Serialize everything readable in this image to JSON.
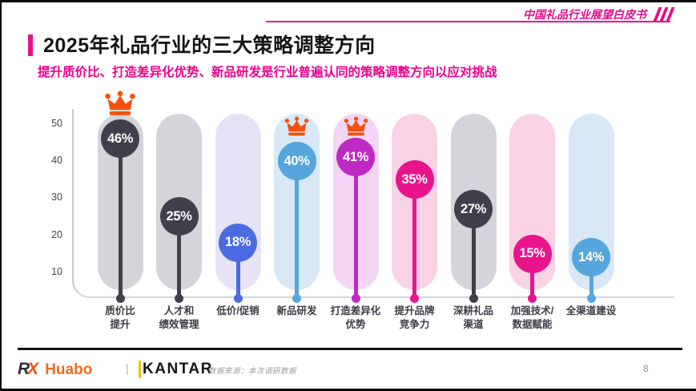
{
  "header": {
    "watermark": "中国礼品行业展望白皮书",
    "title": "2025年礼品行业的三大策略调整方向",
    "subtitle": "提升质价比、打造差异化优势、新品研发是行业普遍认同的策略调整方向以应对挑战"
  },
  "chart_data": {
    "type": "bar",
    "style": "lollipop-capsule",
    "title": "2025年礼品行业的三大策略调整方向",
    "unit": "%",
    "ylim": [
      0,
      50
    ],
    "yticks": [
      10,
      20,
      30,
      40,
      50
    ],
    "grid": false,
    "legend": "none",
    "categories": [
      "质价比提升",
      "人才和绩效管理",
      "低价/促销",
      "新品研发",
      "打造差异化优势",
      "提升品牌竞争力",
      "深耕礼品渠道",
      "加强技术/数据赋能",
      "全渠道建设"
    ],
    "values": [
      46,
      25,
      18,
      40,
      41,
      35,
      27,
      15,
      14
    ],
    "crowned_top3": [
      "质价比提升",
      "打造差异化优势",
      "新品研发"
    ],
    "columns": [
      {
        "label_lines": [
          "质价比",
          "提升"
        ],
        "value": 46,
        "value_label": "46%",
        "accent": "#40404c",
        "capsule": "#d5d4da",
        "crown": "above"
      },
      {
        "label_lines": [
          "人才和",
          "绩效管理"
        ],
        "value": 25,
        "value_label": "25%",
        "accent": "#40404c",
        "capsule": "#d5d4da",
        "crown": null
      },
      {
        "label_lines": [
          "低价/促销"
        ],
        "value": 18,
        "value_label": "18%",
        "accent": "#4a6ce0",
        "capsule": "#e7e2f6",
        "crown": null
      },
      {
        "label_lines": [
          "新品研发"
        ],
        "value": 40,
        "value_label": "40%",
        "accent": "#56a5dc",
        "capsule": "#d8e8f6",
        "crown": "top"
      },
      {
        "label_lines": [
          "打造差异化",
          "优势"
        ],
        "value": 41,
        "value_label": "41%",
        "accent": "#bd2ac4",
        "capsule": "#f3d6f5",
        "crown": "top"
      },
      {
        "label_lines": [
          "提升品牌",
          "竞争力"
        ],
        "value": 35,
        "value_label": "35%",
        "accent": "#e9148c",
        "capsule": "#f9d3e5",
        "crown": null
      },
      {
        "label_lines": [
          "深耕礼品",
          "渠道"
        ],
        "value": 27,
        "value_label": "27%",
        "accent": "#40404c",
        "capsule": "#d5d4da",
        "crown": null
      },
      {
        "label_lines": [
          "加强技术/",
          "数据赋能"
        ],
        "value": 15,
        "value_label": "15%",
        "accent": "#e9148c",
        "capsule": "#f9d3e5",
        "crown": null
      },
      {
        "label_lines": [
          "全渠道建设"
        ],
        "value": 14,
        "value_label": "14%",
        "accent": "#56a5dc",
        "capsule": "#d8e8f6",
        "crown": null
      }
    ],
    "colors": {
      "crown": "#f4500e",
      "accent_pink": "#ec0f8c",
      "axis": "#c9c9cf",
      "baseline": "#d4d4d8"
    }
  },
  "footer": {
    "brand_rx": "R",
    "brand_x": "X",
    "brand_huabo": "Huabo",
    "separator": "|",
    "brand_kantar": "KANTAR",
    "source": "数据来源：本次调研数据",
    "page_number": "8"
  }
}
